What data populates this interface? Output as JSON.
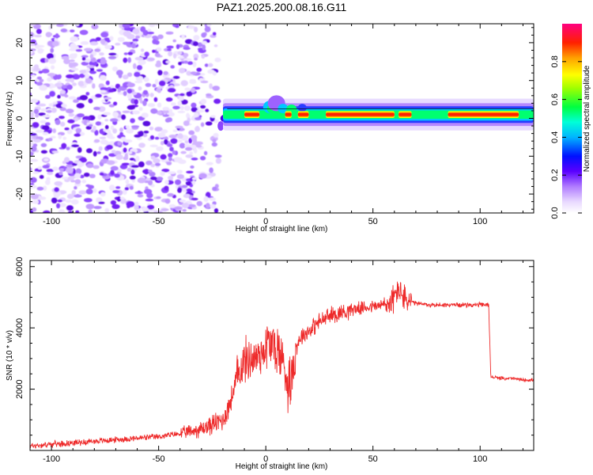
{
  "title": "PAZ1.2025.200.08.16.G11",
  "chart_data": [
    {
      "type": "heatmap",
      "xlabel": "Height of straight line (km)",
      "ylabel": "Frequency (Hz)",
      "xlim": [
        -110,
        125
      ],
      "ylim": [
        -25,
        25
      ],
      "xticks": [
        -100,
        -50,
        0,
        50,
        100
      ],
      "yticks": [
        -20,
        -10,
        0,
        10,
        20
      ],
      "colorbar": {
        "label": "Normalized spectral amplitude",
        "range": [
          0,
          1
        ],
        "ticks": [
          "0.0",
          "0.2",
          "0.4",
          "0.6",
          "0.8"
        ],
        "colormap": "white-purple-blue-cyan-green-yellow-orange-red-magenta"
      },
      "features": {
        "noise_region_x": [
          -110,
          -22
        ],
        "signal_line_frequency_hz": 1,
        "signal_region_x": [
          -22,
          125
        ]
      }
    },
    {
      "type": "line",
      "xlabel": "Height of straight line (km)",
      "ylabel": "SNR (10 * v/v)",
      "xlim": [
        -110,
        125
      ],
      "ylim": [
        0,
        6200
      ],
      "xticks": [
        -100,
        -50,
        0,
        50,
        100
      ],
      "yticks": [
        2000,
        4000,
        6000
      ],
      "series_color": "#ee2a2a",
      "series": [
        {
          "x": [
            -110,
            -100,
            -90,
            -80,
            -70,
            -60,
            -50,
            -40,
            -30,
            -25,
            -20,
            -18,
            -16,
            -14,
            -12,
            -10,
            -8,
            -5,
            -2,
            0,
            2,
            5,
            7,
            9,
            10,
            12,
            14,
            16,
            20,
            25,
            30,
            35,
            40,
            45,
            50,
            55,
            58,
            60,
            62,
            65,
            70,
            75,
            80,
            90,
            100,
            104,
            105,
            110,
            115,
            120,
            125
          ],
          "y": [
            150,
            200,
            250,
            300,
            350,
            400,
            450,
            550,
            700,
            850,
            1000,
            1300,
            1700,
            2200,
            2700,
            2900,
            3000,
            3000,
            3200,
            3400,
            3500,
            3300,
            3100,
            2700,
            2200,
            2400,
            3300,
            3700,
            3900,
            4200,
            4400,
            4500,
            4600,
            4650,
            4700,
            4750,
            4800,
            5000,
            5300,
            4900,
            4800,
            4750,
            4750,
            4750,
            4750,
            4750,
            2400,
            2350,
            2350,
            2300,
            2300
          ]
        }
      ]
    }
  ]
}
